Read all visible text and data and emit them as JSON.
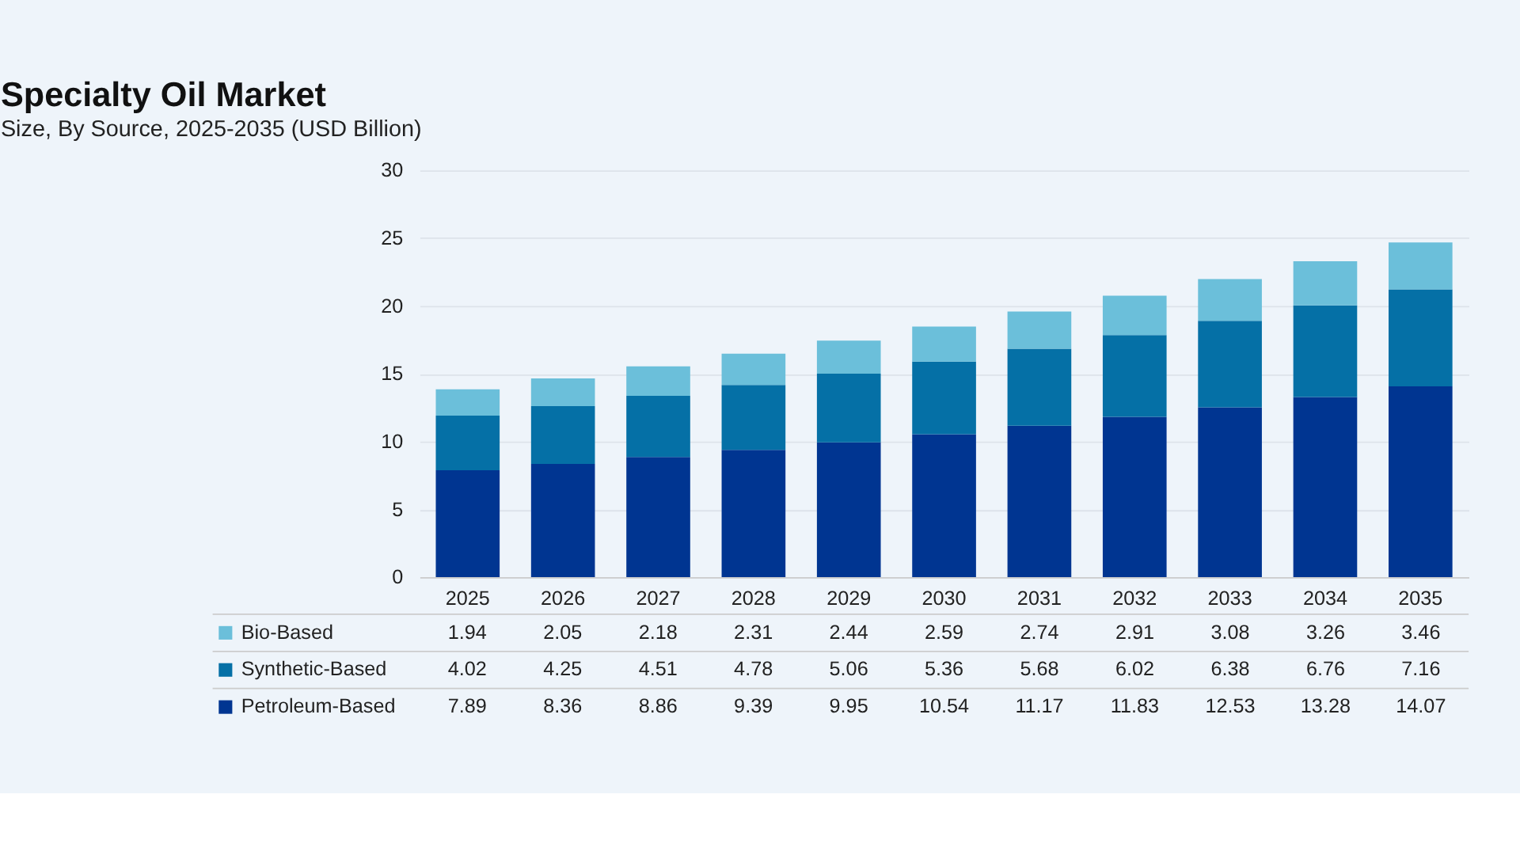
{
  "chart_data": {
    "type": "bar",
    "title": "Specialty Oil Market",
    "subtitle": "Size, By Source, 2025-2035 (USD Billion)",
    "categories": [
      "2025",
      "2026",
      "2027",
      "2028",
      "2029",
      "2030",
      "2031",
      "2032",
      "2033",
      "2034",
      "2035"
    ],
    "stacked": true,
    "series": [
      {
        "name": "Petroleum-Based",
        "color": "#003591",
        "values": [
          7.89,
          8.36,
          8.86,
          9.39,
          9.95,
          10.54,
          11.17,
          11.83,
          12.53,
          13.28,
          14.07
        ]
      },
      {
        "name": "Synthetic-Based",
        "color": "#0570a6",
        "values": [
          4.02,
          4.25,
          4.51,
          4.78,
          5.06,
          5.36,
          5.68,
          6.02,
          6.38,
          6.76,
          7.16
        ]
      },
      {
        "name": "Bio-Based",
        "color": "#6bbfda",
        "values": [
          1.94,
          2.05,
          2.18,
          2.31,
          2.44,
          2.59,
          2.74,
          2.91,
          3.08,
          3.26,
          3.46
        ]
      }
    ],
    "ylim": [
      0,
      30
    ],
    "yticks": [
      0,
      5,
      10,
      15,
      20,
      25,
      30
    ],
    "grid": "y",
    "data_labels": true,
    "legend": "bottom"
  }
}
